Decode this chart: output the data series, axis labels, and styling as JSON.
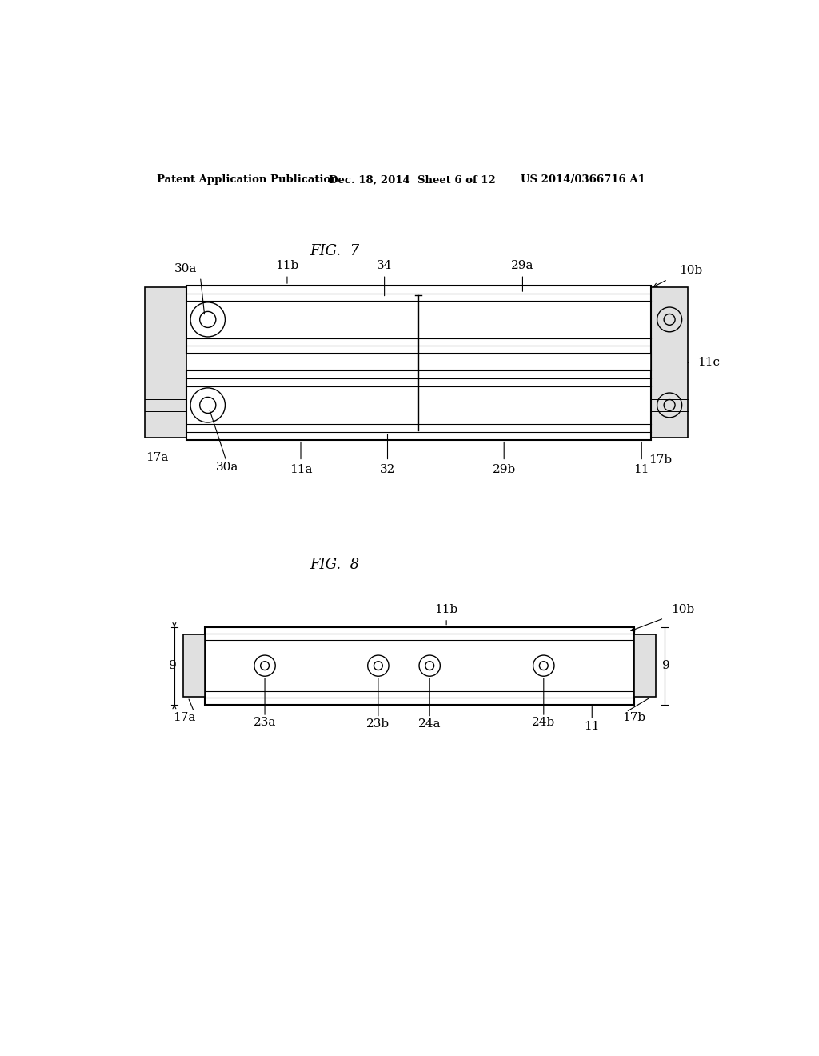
{
  "bg_color": "#ffffff",
  "header_left": "Patent Application Publication",
  "header_mid": "Dec. 18, 2014  Sheet 6 of 12",
  "header_right": "US 2014/0366716 A1",
  "fig7_title": "FIG.  7",
  "fig8_title": "FIG.  8"
}
